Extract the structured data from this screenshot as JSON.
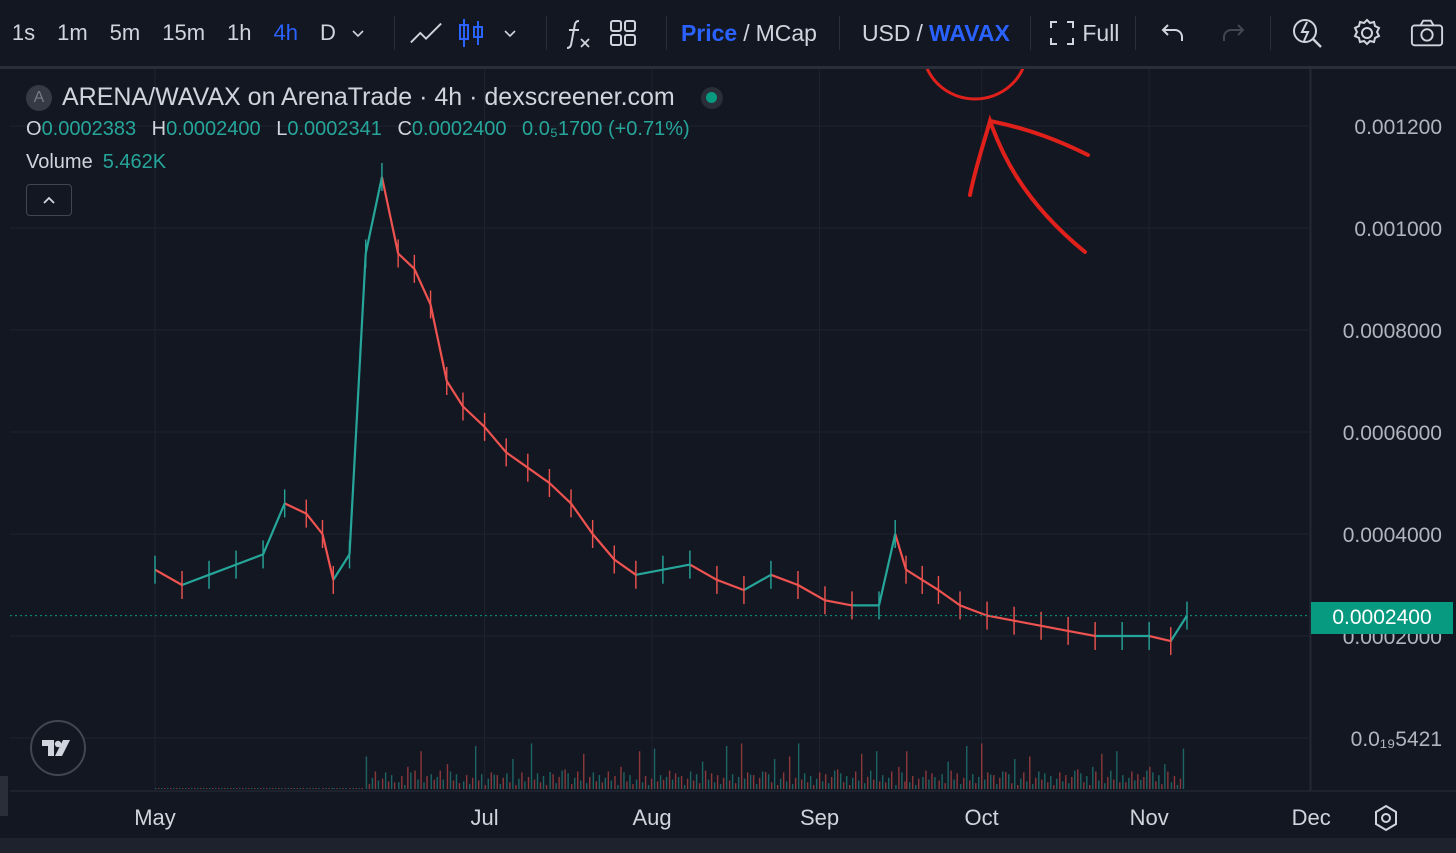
{
  "toolbar": {
    "timeframes": [
      "1s",
      "1m",
      "5m",
      "15m",
      "1h",
      "4h",
      "D"
    ],
    "active_timeframe": "4h",
    "price_label": "Price",
    "mcap_label": "MCap",
    "usd_label": "USD",
    "wavax_label": "WAVAX",
    "full_label": "Full",
    "separator": "/"
  },
  "legend": {
    "badge": "A",
    "title": "ARENA/WAVAX on ArenaTrade · 4h · dexscreener.com",
    "o_label": "O",
    "o_value": "0.0002383",
    "h_label": "H",
    "h_value": "0.0002400",
    "l_label": "L",
    "l_value": "0.0002341",
    "c_label": "C",
    "c_value": "0.0002400",
    "change": "0.0₅1700 (+0.71%)",
    "volume_label": "Volume",
    "volume_value": "5.462K"
  },
  "current_price": "0.0002400",
  "colors": {
    "background": "#131722",
    "up": "#26a69a",
    "down": "#ef5350",
    "accent": "#2962ff",
    "annotation": "#e0201b",
    "price_tag": "#089981"
  },
  "chart_data": {
    "type": "line",
    "title": "ARENA/WAVAX on ArenaTrade · 4h · dexscreener.com",
    "y_tick_labels": [
      "0.001200",
      "0.001000",
      "0.0008000",
      "0.0006000",
      "0.0004000",
      "0.0002000",
      "0.0₁₉5421"
    ],
    "y_tick_values": [
      0.0012,
      0.001,
      0.0008,
      0.0006,
      0.0004,
      0.0002,
      0.0
    ],
    "x_tick_labels": [
      "May",
      "Jul",
      "Aug",
      "Sep",
      "Oct",
      "Nov",
      "Dec"
    ],
    "ylim": [
      0,
      0.00126
    ],
    "grid": true,
    "series": [
      {
        "x": [
          "2024-05-01",
          "2024-05-06",
          "2024-05-11",
          "2024-05-16",
          "2024-05-21",
          "2024-05-25",
          "2024-05-29",
          "2024-06-01",
          "2024-06-03",
          "2024-06-06",
          "2024-06-09",
          "2024-06-12",
          "2024-06-15",
          "2024-06-18",
          "2024-06-21",
          "2024-06-24",
          "2024-06-27",
          "2024-07-01",
          "2024-07-05",
          "2024-07-09",
          "2024-07-13",
          "2024-07-17",
          "2024-07-21",
          "2024-07-25",
          "2024-07-29",
          "2024-08-03",
          "2024-08-08",
          "2024-08-13",
          "2024-08-18",
          "2024-08-23",
          "2024-08-28",
          "2024-09-02",
          "2024-09-07",
          "2024-09-12",
          "2024-09-15",
          "2024-09-17",
          "2024-09-20",
          "2024-09-23",
          "2024-09-27",
          "2024-10-02",
          "2024-10-07",
          "2024-10-12",
          "2024-10-17",
          "2024-10-22",
          "2024-10-27",
          "2024-11-01",
          "2024-11-05",
          "2024-11-08"
        ],
        "y": [
          0.00033,
          0.0003,
          0.00032,
          0.00034,
          0.00036,
          0.00046,
          0.00044,
          0.0004,
          0.00031,
          0.00036,
          0.00095,
          0.0011,
          0.00095,
          0.00092,
          0.00085,
          0.0007,
          0.00065,
          0.00061,
          0.00056,
          0.00053,
          0.0005,
          0.00046,
          0.0004,
          0.00035,
          0.00032,
          0.00033,
          0.00034,
          0.00031,
          0.00029,
          0.00032,
          0.0003,
          0.00027,
          0.00026,
          0.00026,
          0.0004,
          0.00033,
          0.00031,
          0.00029,
          0.00026,
          0.00024,
          0.00023,
          0.00022,
          0.00021,
          0.0002,
          0.0002,
          0.0002,
          0.00019,
          0.00024
        ]
      }
    ]
  }
}
